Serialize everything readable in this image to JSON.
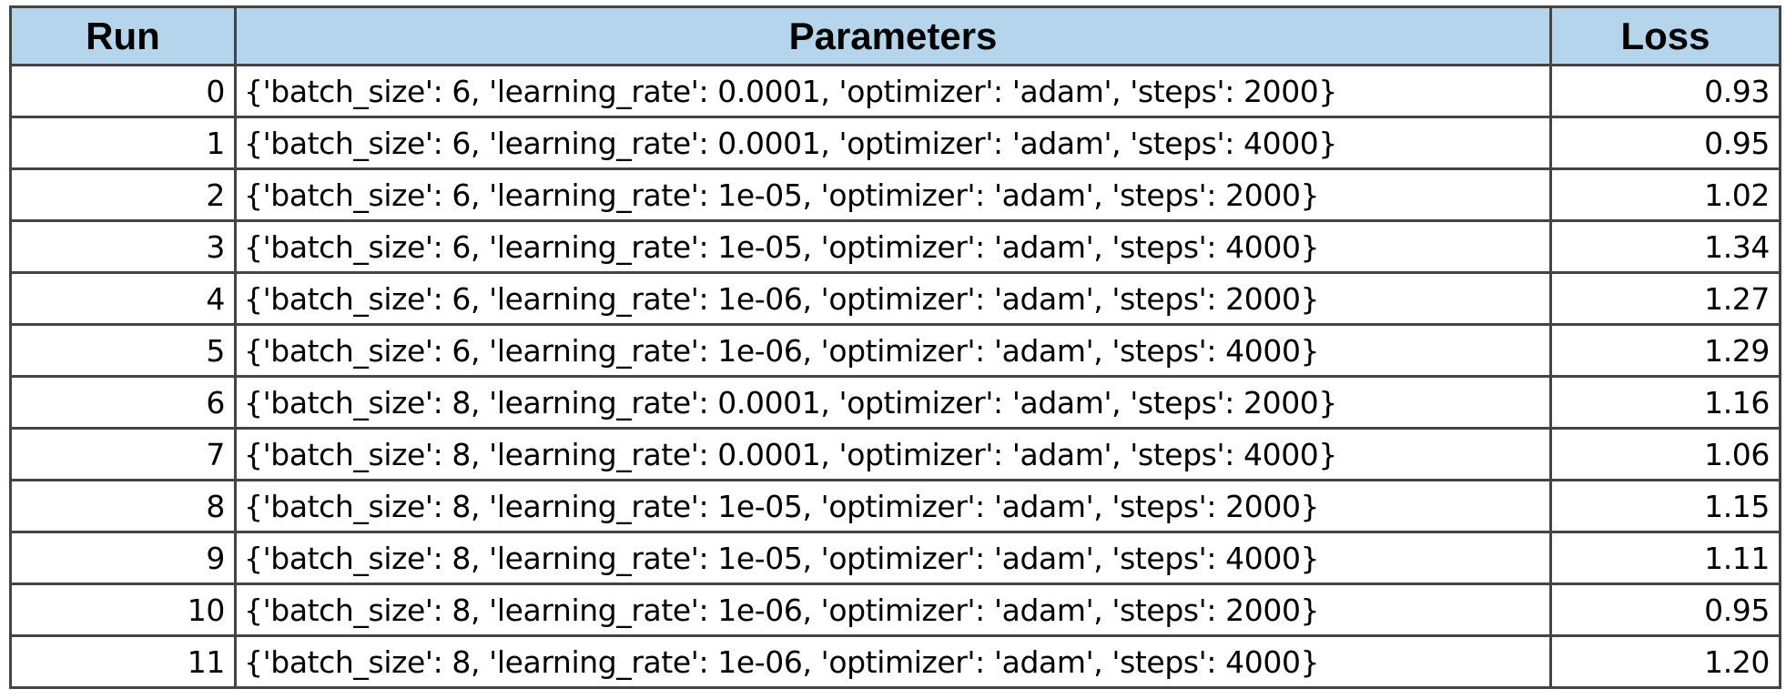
{
  "colors": {
    "header_background": "#b5d5ed",
    "border": "#444444"
  },
  "chart_data": {
    "type": "table",
    "columns": [
      "Run",
      "Parameters",
      "Loss"
    ],
    "rows": [
      {
        "run": "0",
        "params": "{'batch_size': 6, 'learning_rate': 0.0001, 'optimizer': 'adam', 'steps': 2000}",
        "loss": "0.93"
      },
      {
        "run": "1",
        "params": "{'batch_size': 6, 'learning_rate': 0.0001, 'optimizer': 'adam', 'steps': 4000}",
        "loss": "0.95"
      },
      {
        "run": "2",
        "params": "{'batch_size': 6, 'learning_rate': 1e-05, 'optimizer': 'adam', 'steps': 2000}",
        "loss": "1.02"
      },
      {
        "run": "3",
        "params": "{'batch_size': 6, 'learning_rate': 1e-05, 'optimizer': 'adam', 'steps': 4000}",
        "loss": "1.34"
      },
      {
        "run": "4",
        "params": "{'batch_size': 6, 'learning_rate': 1e-06, 'optimizer': 'adam', 'steps': 2000}",
        "loss": "1.27"
      },
      {
        "run": "5",
        "params": "{'batch_size': 6, 'learning_rate': 1e-06, 'optimizer': 'adam', 'steps': 4000}",
        "loss": "1.29"
      },
      {
        "run": "6",
        "params": "{'batch_size': 8, 'learning_rate': 0.0001, 'optimizer': 'adam', 'steps': 2000}",
        "loss": "1.16"
      },
      {
        "run": "7",
        "params": "{'batch_size': 8, 'learning_rate': 0.0001, 'optimizer': 'adam', 'steps': 4000}",
        "loss": "1.06"
      },
      {
        "run": "8",
        "params": "{'batch_size': 8, 'learning_rate': 1e-05, 'optimizer': 'adam', 'steps': 2000}",
        "loss": "1.15"
      },
      {
        "run": "9",
        "params": "{'batch_size': 8, 'learning_rate': 1e-05, 'optimizer': 'adam', 'steps': 4000}",
        "loss": "1.11"
      },
      {
        "run": "10",
        "params": "{'batch_size': 8, 'learning_rate': 1e-06, 'optimizer': 'adam', 'steps': 2000}",
        "loss": "0.95"
      },
      {
        "run": "11",
        "params": "{'batch_size': 8, 'learning_rate': 1e-06, 'optimizer': 'adam', 'steps': 4000}",
        "loss": "1.20"
      }
    ]
  }
}
